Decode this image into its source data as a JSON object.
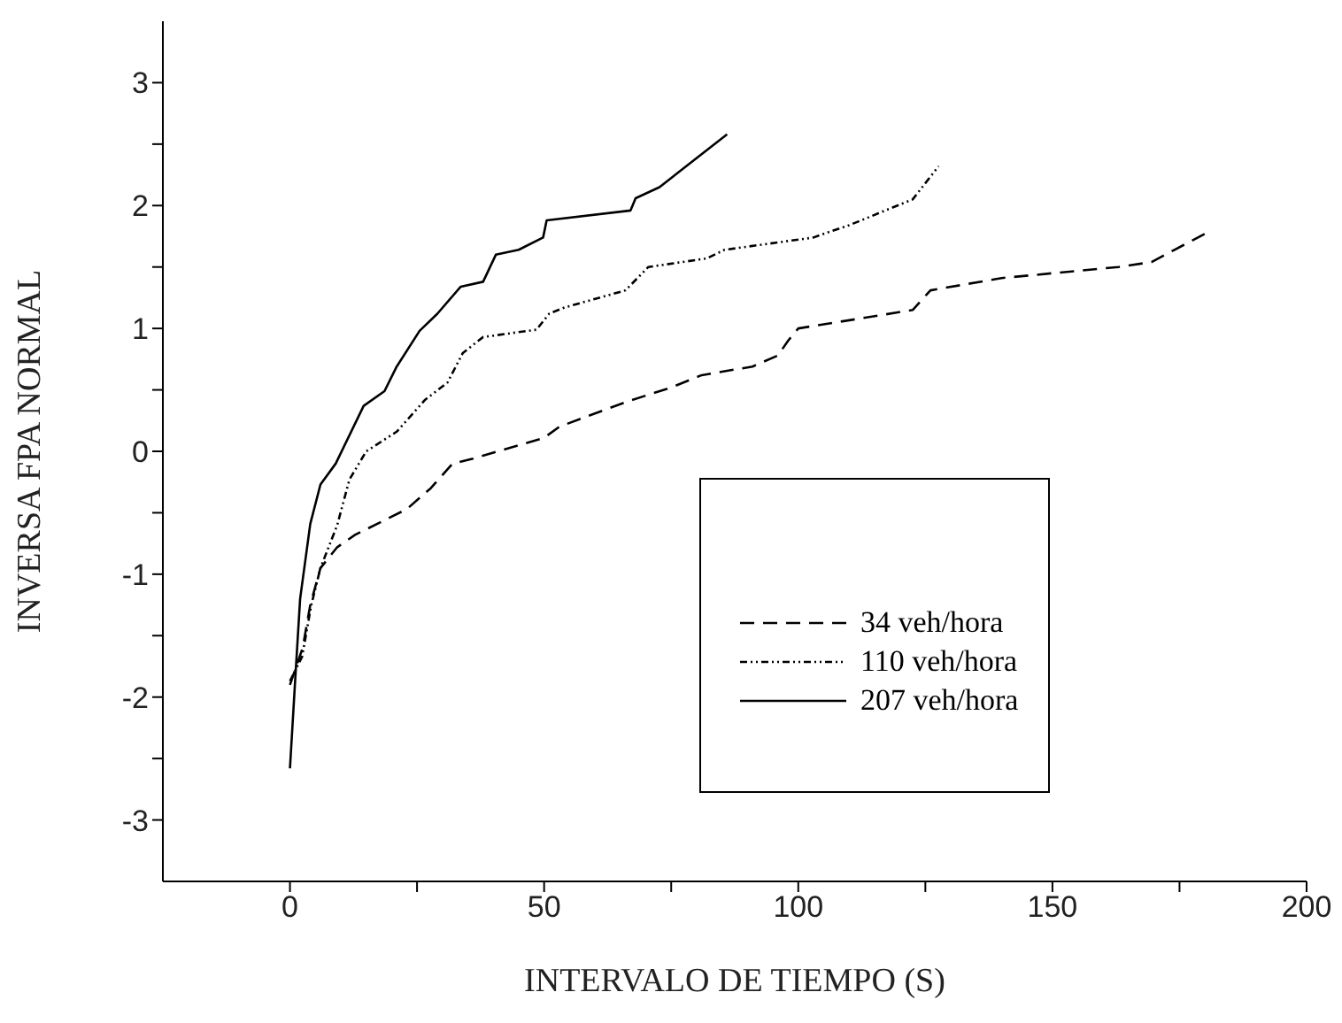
{
  "chart_data": {
    "type": "line",
    "xlabel": "INTERVALO DE TIEMPO (S)",
    "ylabel": "INVERSA FPA NORMAL",
    "xlim": [
      -25,
      200
    ],
    "xticks": [
      0,
      {
        "value": 25,
        "label": null
      },
      50,
      {
        "value": 75,
        "label": null
      },
      100,
      {
        "value": 125,
        "label": null
      },
      150,
      {
        "value": 175,
        "label": null
      },
      200
    ],
    "ylim": [
      -3.5,
      3.5
    ],
    "yticks": [
      -3,
      {
        "value": -2.5,
        "label": null
      },
      -2,
      {
        "value": -1.5,
        "label": null
      },
      -1,
      {
        "value": -0.5,
        "label": null
      },
      0,
      {
        "value": 0.5,
        "label": null
      },
      1,
      {
        "value": 1.5,
        "label": null
      },
      2,
      {
        "value": 2.5,
        "label": null
      },
      3
    ],
    "grid": false,
    "legend": "bottom right",
    "marker": "none",
    "series": [
      {
        "name": "34 veh/hora",
        "color": "#000000",
        "line_style": "dashed",
        "x": [
          0,
          2.5,
          4,
          6,
          9.3,
          12.8,
          23,
          27.7,
          32,
          36,
          50,
          53,
          66,
          75,
          81,
          91,
          96,
          98,
          100,
          122.5,
          126,
          140,
          163,
          169.5,
          174,
          180
        ],
        "values": [
          -1.9,
          -1.6,
          -1.25,
          -0.95,
          -0.78,
          -0.68,
          -0.47,
          -0.3,
          -0.1,
          -0.06,
          0.11,
          0.2,
          0.4,
          0.52,
          0.62,
          0.69,
          0.78,
          0.9,
          1.0,
          1.15,
          1.31,
          1.41,
          1.5,
          1.54,
          1.64,
          1.77
        ]
      },
      {
        "name": "110 veh/hora",
        "color": "#000000",
        "line_style": "dotted",
        "x": [
          0,
          2.4,
          4.2,
          6,
          9.3,
          11.7,
          15,
          21,
          26.6,
          31,
          34,
          38,
          48.5,
          51,
          54,
          66,
          70.5,
          82,
          85.5,
          103,
          105,
          110,
          122.5,
          127.6
        ],
        "values": [
          -1.87,
          -1.67,
          -1.25,
          -0.95,
          -0.6,
          -0.23,
          0,
          0.16,
          0.42,
          0.56,
          0.8,
          0.93,
          0.99,
          1.12,
          1.17,
          1.31,
          1.5,
          1.57,
          1.64,
          1.74,
          1.77,
          1.84,
          2.05,
          2.32
        ]
      },
      {
        "name": "207 veh/hora",
        "color": "#000000",
        "line_style": "solid",
        "x": [
          0,
          1,
          2,
          4,
          6,
          9,
          14.5,
          18.6,
          21,
          25.5,
          29,
          33.6,
          38,
          40.5,
          45,
          49.8,
          50.5,
          67,
          68,
          72.7,
          86
        ],
        "values": [
          -2.58,
          -1.88,
          -1.2,
          -0.59,
          -0.27,
          -0.1,
          0.37,
          0.49,
          0.69,
          0.98,
          1.12,
          1.34,
          1.38,
          1.6,
          1.64,
          1.74,
          1.88,
          1.96,
          2.06,
          2.15,
          2.58
        ]
      }
    ]
  }
}
